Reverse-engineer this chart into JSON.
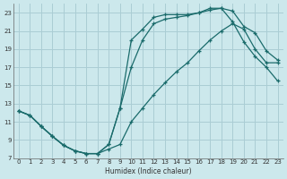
{
  "xlabel": "Humidex (Indice chaleur)",
  "bg_color": "#cce8ec",
  "grid_color": "#aacdd4",
  "line_color": "#1a6b6b",
  "xlim": [
    -0.5,
    23.5
  ],
  "ylim": [
    7,
    24
  ],
  "xticks": [
    0,
    1,
    2,
    3,
    4,
    5,
    6,
    7,
    8,
    9,
    10,
    11,
    12,
    13,
    14,
    15,
    16,
    17,
    18,
    19,
    20,
    21,
    22,
    23
  ],
  "yticks": [
    7,
    9,
    11,
    13,
    15,
    17,
    19,
    21,
    23
  ],
  "curve1_x": [
    0,
    1,
    2,
    3,
    4,
    5,
    6,
    7,
    8,
    9,
    10,
    11,
    12,
    13,
    14,
    15,
    16,
    17,
    18,
    19,
    20,
    21,
    22,
    23
  ],
  "curve1_y": [
    12.2,
    11.7,
    10.5,
    9.4,
    8.4,
    7.8,
    7.5,
    7.5,
    8.5,
    12.5,
    20.0,
    21.2,
    22.5,
    22.8,
    22.8,
    22.8,
    23.0,
    23.5,
    23.5,
    23.2,
    21.5,
    20.8,
    18.8,
    17.8
  ],
  "curve2_x": [
    0,
    1,
    2,
    3,
    4,
    5,
    6,
    7,
    8,
    9,
    10,
    11,
    12,
    13,
    14,
    15,
    16,
    17,
    18,
    19,
    20,
    21,
    22,
    23
  ],
  "curve2_y": [
    12.2,
    11.7,
    10.5,
    9.4,
    8.4,
    7.8,
    7.5,
    7.5,
    8.5,
    12.5,
    17.0,
    20.0,
    21.8,
    22.3,
    22.5,
    22.7,
    23.0,
    23.3,
    23.5,
    22.0,
    19.8,
    18.2,
    17.0,
    15.5
  ],
  "curve3_x": [
    0,
    1,
    2,
    3,
    4,
    5,
    6,
    7,
    8,
    9,
    10,
    11,
    12,
    13,
    14,
    15,
    16,
    17,
    18,
    19,
    20,
    21,
    22,
    23
  ],
  "curve3_y": [
    12.2,
    11.7,
    10.5,
    9.4,
    8.4,
    7.8,
    7.5,
    7.5,
    8.0,
    8.5,
    11.0,
    12.5,
    14.0,
    15.3,
    16.5,
    17.5,
    18.8,
    20.0,
    21.0,
    21.8,
    21.2,
    19.0,
    17.5,
    17.5
  ]
}
